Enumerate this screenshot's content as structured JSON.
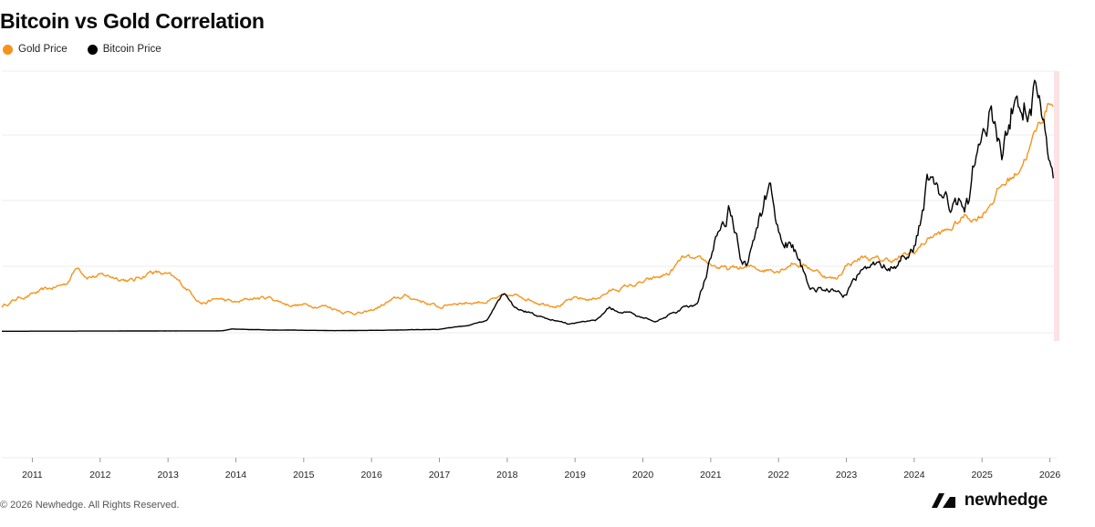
{
  "title": "Bitcoin vs Gold Correlation",
  "legend": [
    {
      "label": "Gold Price",
      "color": "#F7931A"
    },
    {
      "label": "Bitcoin Price",
      "color": "#000000"
    }
  ],
  "footer": "© 2026 Newhedge. All Rights Reserved.",
  "brand": {
    "name": "newhedge",
    "icon": "newhedge-logo-icon"
  },
  "chart_data": {
    "type": "line",
    "title": "Bitcoin vs Gold Correlation",
    "xlabel": "",
    "ylabel": "",
    "grid": true,
    "legend_position": "top-left",
    "x_ticks": [
      "2011",
      "2012",
      "2013",
      "2014",
      "2015",
      "2016",
      "2017",
      "2018",
      "2019",
      "2020",
      "2021",
      "2022",
      "2023",
      "2024",
      "2025",
      "2026"
    ],
    "xlim": [
      2010.55,
      2026.1
    ],
    "series": [
      {
        "name": "Gold Price",
        "color": "#F7931A",
        "axis_range": [
          600,
          4600
        ],
        "x": [
          2010.55,
          2010.8,
          2011.0,
          2011.25,
          2011.5,
          2011.67,
          2011.8,
          2012.0,
          2012.3,
          2012.5,
          2012.75,
          2013.0,
          2013.3,
          2013.5,
          2013.75,
          2014.0,
          2014.25,
          2014.5,
          2014.75,
          2015.0,
          2015.3,
          2015.6,
          2015.9,
          2016.0,
          2016.25,
          2016.5,
          2016.75,
          2017.0,
          2017.25,
          2017.5,
          2017.75,
          2018.0,
          2018.25,
          2018.5,
          2018.75,
          2019.0,
          2019.25,
          2019.5,
          2019.75,
          2020.0,
          2020.2,
          2020.4,
          2020.6,
          2020.8,
          2021.0,
          2021.25,
          2021.5,
          2021.75,
          2022.0,
          2022.2,
          2022.5,
          2022.75,
          2022.85,
          2023.0,
          2023.25,
          2023.5,
          2023.75,
          2024.0,
          2024.25,
          2024.5,
          2024.75,
          2024.9,
          2025.0,
          2025.25,
          2025.5,
          2025.75,
          2025.85,
          2026.0,
          2026.05
        ],
        "values": [
          1180,
          1320,
          1380,
          1450,
          1550,
          1850,
          1700,
          1680,
          1650,
          1600,
          1760,
          1680,
          1450,
          1250,
          1300,
          1230,
          1310,
          1320,
          1220,
          1200,
          1200,
          1100,
          1070,
          1100,
          1250,
          1340,
          1270,
          1160,
          1250,
          1250,
          1280,
          1330,
          1330,
          1250,
          1220,
          1290,
          1290,
          1420,
          1500,
          1560,
          1620,
          1720,
          1970,
          1890,
          1860,
          1770,
          1800,
          1790,
          1800,
          1920,
          1800,
          1650,
          1620,
          1860,
          1990,
          1920,
          1950,
          2050,
          2330,
          2400,
          2650,
          2620,
          2700,
          3100,
          3350,
          3900,
          4150,
          4550,
          4500
        ]
      },
      {
        "name": "Bitcoin Price",
        "color": "#000000",
        "axis_range": [
          -5000,
          110000
        ],
        "x": [
          2010.55,
          2013.8,
          2013.95,
          2014.5,
          2015.5,
          2016.5,
          2017.0,
          2017.4,
          2017.7,
          2017.96,
          2018.1,
          2018.4,
          2018.9,
          2019.3,
          2019.5,
          2019.9,
          2020.2,
          2020.5,
          2020.8,
          2020.95,
          2021.1,
          2021.28,
          2021.45,
          2021.55,
          2021.65,
          2021.86,
          2022.0,
          2022.2,
          2022.45,
          2022.8,
          2022.95,
          2023.2,
          2023.5,
          2023.8,
          2024.0,
          2024.2,
          2024.5,
          2024.6,
          2024.8,
          2024.95,
          2025.1,
          2025.3,
          2025.45,
          2025.6,
          2025.75,
          2025.9,
          2026.0,
          2026.05
        ],
        "values": [
          0,
          200,
          1000,
          600,
          300,
          600,
          1000,
          2500,
          4500,
          19000,
          11000,
          8000,
          3500,
          5000,
          11000,
          7200,
          5000,
          9500,
          13000,
          29000,
          45000,
          60000,
          35000,
          32000,
          45000,
          66000,
          47000,
          42000,
          20000,
          19500,
          16600,
          28000,
          29500,
          34000,
          42000,
          70000,
          60000,
          58000,
          63000,
          95000,
          103000,
          80000,
          109000,
          112000,
          116000,
          90000,
          78000,
          76000
        ]
      }
    ]
  }
}
